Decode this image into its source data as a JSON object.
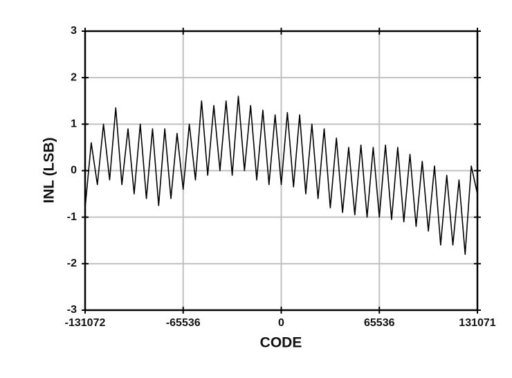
{
  "chart_data": {
    "type": "line",
    "xlabel": "CODE",
    "ylabel": "INL (LSB)",
    "x": [
      -131072,
      -126976,
      -122880,
      -118784,
      -114688,
      -110592,
      -106496,
      -102400,
      -98304,
      -94208,
      -90112,
      -86016,
      -81920,
      -77824,
      -73728,
      -69632,
      -65536,
      -61440,
      -57344,
      -53248,
      -49152,
      -45056,
      -40960,
      -36864,
      -32768,
      -28672,
      -24576,
      -20480,
      -16384,
      -12288,
      -8192,
      -4096,
      0,
      4096,
      8192,
      12288,
      16384,
      20480,
      24576,
      28672,
      32768,
      36864,
      40960,
      45056,
      49152,
      53248,
      57344,
      61440,
      65536,
      69632,
      73728,
      77824,
      81920,
      86016,
      90112,
      94208,
      98304,
      102400,
      106496,
      110592,
      114688,
      118784,
      122880,
      126976,
      131071
    ],
    "series": [
      {
        "color": "#000000",
        "values": [
          -0.8,
          0.6,
          -0.3,
          1.0,
          -0.2,
          1.35,
          -0.3,
          0.9,
          -0.5,
          1.0,
          -0.6,
          0.9,
          -0.75,
          0.9,
          -0.6,
          0.8,
          -0.4,
          1.0,
          -0.2,
          1.5,
          -0.1,
          1.4,
          0.0,
          1.5,
          -0.1,
          1.6,
          0.0,
          1.4,
          -0.2,
          1.3,
          -0.3,
          1.2,
          -0.3,
          1.25,
          -0.35,
          1.2,
          -0.5,
          1.0,
          -0.6,
          0.9,
          -0.8,
          0.7,
          -0.9,
          0.5,
          -0.95,
          0.55,
          -1.0,
          0.5,
          -1.0,
          0.55,
          -1.05,
          0.5,
          -1.1,
          0.35,
          -1.2,
          0.2,
          -1.3,
          0.1,
          -1.6,
          -0.1,
          -1.6,
          -0.2,
          -1.8,
          0.1,
          -0.5
        ]
      }
    ],
    "xlim": [
      -131072,
      131071
    ],
    "xticks": [
      -131072,
      -65536,
      0,
      65536,
      131071
    ],
    "ylim": [
      -3,
      3
    ],
    "yticks": [
      -3,
      -2,
      -1,
      0,
      1,
      2,
      3
    ],
    "grid": true
  }
}
